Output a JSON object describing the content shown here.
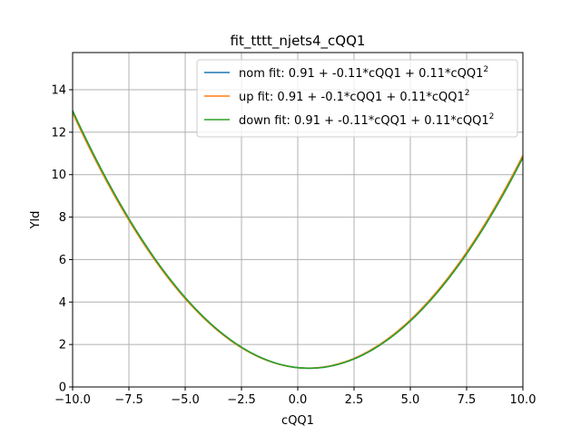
{
  "chart_data": {
    "type": "line",
    "title": "fit_tttt_njets4_cQQ1",
    "xlabel": "cQQ1",
    "ylabel": "Yld",
    "xlim": [
      -10,
      10
    ],
    "ylim": [
      0,
      15.75
    ],
    "xticks": [
      -10,
      -7.5,
      -5,
      -2.5,
      0,
      2.5,
      5,
      7.5,
      10
    ],
    "xtick_labels": [
      "−10.0",
      "−7.5",
      "−5.0",
      "−2.5",
      "0.0",
      "2.5",
      "5.0",
      "7.5",
      "10.0"
    ],
    "yticks": [
      0,
      2,
      4,
      6,
      8,
      10,
      12,
      14
    ],
    "ytick_labels": [
      "0",
      "2",
      "4",
      "6",
      "8",
      "10",
      "12",
      "14"
    ],
    "grid": true,
    "legend_position": "top-right",
    "series": [
      {
        "name": "nom fit: 0.91 + -0.11*cQQ1 + 0.11*cQQ1",
        "exponent": "2",
        "color": "#1f77b4",
        "coefficients": [
          0.91,
          -0.11,
          0.11
        ]
      },
      {
        "name": "up fit: 0.91 + -0.1*cQQ1 + 0.11*cQQ1",
        "exponent": "2",
        "color": "#ff7f0e",
        "coefficients": [
          0.91,
          -0.1,
          0.11
        ]
      },
      {
        "name": "down fit: 0.91 + -0.11*cQQ1 + 0.11*cQQ1",
        "exponent": "2",
        "color": "#2ca02c",
        "coefficients": [
          0.91,
          -0.11,
          0.11
        ]
      }
    ]
  }
}
